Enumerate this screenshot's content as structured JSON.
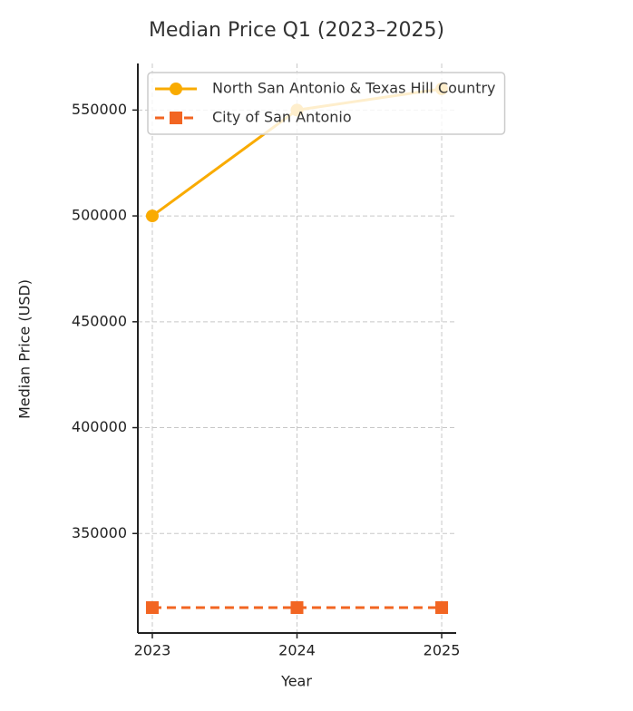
{
  "chart_data": {
    "type": "line",
    "title": "Median Price Q1 (2023–2025)",
    "x_label": "Year",
    "y_label": "Median Price (USD)",
    "x": [
      2023,
      2024,
      2025
    ],
    "series": [
      {
        "name": "North San Antonio & Texas Hill Country",
        "color": "#f9ab00",
        "marker": "circle",
        "linestyle": "solid",
        "values": [
          500000,
          550000,
          560000
        ]
      },
      {
        "name": "City of San Antonio",
        "color": "#f26522",
        "marker": "square",
        "linestyle": "dashed",
        "values": [
          315000,
          315000,
          315000
        ]
      }
    ],
    "xlim": [
      2022.9,
      2025.1
    ],
    "xticks": [
      2023,
      2024,
      2025
    ],
    "ylim": [
      303000,
      572000
    ],
    "yticks": [
      350000,
      400000,
      450000,
      500000,
      550000
    ],
    "grid": true,
    "legend": "upper left"
  }
}
